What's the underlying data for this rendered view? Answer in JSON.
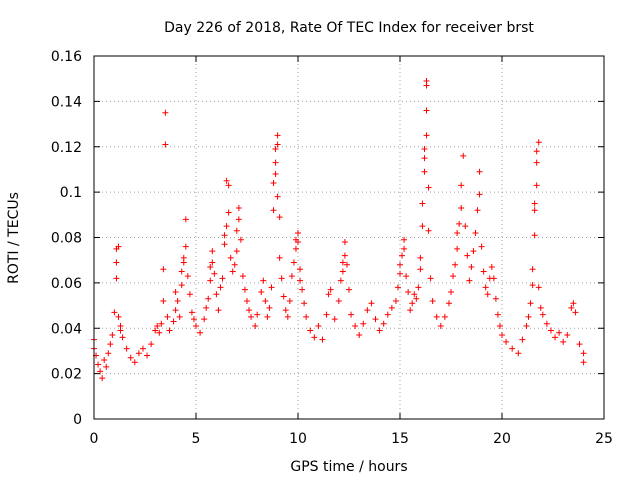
{
  "chart_data": {
    "type": "scatter",
    "title": "Day 226 of 2018, Rate Of TEC Index for receiver brst",
    "xlabel": "GPS time / hours",
    "ylabel": "ROTI / TECUs",
    "xlim": [
      0,
      25
    ],
    "ylim": [
      0,
      0.16
    ],
    "xticks": [
      "0",
      "5",
      "10",
      "15",
      "20",
      "25"
    ],
    "yticks": [
      "0",
      "0.02",
      "0.04",
      "0.06",
      "0.08",
      "0.1",
      "0.12",
      "0.14",
      "0.16"
    ],
    "grid": true,
    "marker": "plus",
    "color": "#ff0000",
    "series": [
      {
        "points": [
          [
            0.0,
            0.031
          ],
          [
            0.0,
            0.035
          ],
          [
            0.1,
            0.028
          ],
          [
            0.2,
            0.024
          ],
          [
            0.3,
            0.021
          ],
          [
            0.4,
            0.018
          ],
          [
            0.5,
            0.026
          ],
          [
            0.6,
            0.023
          ],
          [
            0.7,
            0.029
          ],
          [
            0.8,
            0.033
          ],
          [
            0.9,
            0.037
          ],
          [
            1.0,
            0.047
          ],
          [
            1.1,
            0.062
          ],
          [
            1.1,
            0.069
          ],
          [
            1.1,
            0.075
          ],
          [
            1.2,
            0.076
          ],
          [
            1.2,
            0.045
          ],
          [
            1.3,
            0.041
          ],
          [
            1.3,
            0.039
          ],
          [
            1.4,
            0.036
          ],
          [
            1.6,
            0.031
          ],
          [
            1.8,
            0.027
          ],
          [
            2.0,
            0.025
          ],
          [
            2.2,
            0.029
          ],
          [
            2.4,
            0.031
          ],
          [
            2.6,
            0.028
          ],
          [
            2.8,
            0.033
          ],
          [
            3.0,
            0.039
          ],
          [
            3.1,
            0.041
          ],
          [
            3.2,
            0.038
          ],
          [
            3.3,
            0.042
          ],
          [
            3.4,
            0.066
          ],
          [
            3.4,
            0.052
          ],
          [
            3.5,
            0.135
          ],
          [
            3.5,
            0.121
          ],
          [
            3.6,
            0.045
          ],
          [
            3.7,
            0.039
          ],
          [
            3.9,
            0.043
          ],
          [
            4.0,
            0.048
          ],
          [
            4.0,
            0.056
          ],
          [
            4.1,
            0.052
          ],
          [
            4.2,
            0.045
          ],
          [
            4.3,
            0.059
          ],
          [
            4.3,
            0.065
          ],
          [
            4.4,
            0.069
          ],
          [
            4.4,
            0.071
          ],
          [
            4.5,
            0.076
          ],
          [
            4.5,
            0.088
          ],
          [
            4.6,
            0.063
          ],
          [
            4.7,
            0.055
          ],
          [
            4.8,
            0.047
          ],
          [
            4.9,
            0.044
          ],
          [
            5.0,
            0.041
          ],
          [
            5.2,
            0.038
          ],
          [
            5.4,
            0.044
          ],
          [
            5.5,
            0.049
          ],
          [
            5.6,
            0.053
          ],
          [
            5.7,
            0.061
          ],
          [
            5.7,
            0.067
          ],
          [
            5.8,
            0.069
          ],
          [
            5.8,
            0.074
          ],
          [
            5.9,
            0.064
          ],
          [
            6.0,
            0.055
          ],
          [
            6.1,
            0.048
          ],
          [
            6.2,
            0.058
          ],
          [
            6.3,
            0.062
          ],
          [
            6.4,
            0.077
          ],
          [
            6.4,
            0.081
          ],
          [
            6.5,
            0.085
          ],
          [
            6.5,
            0.105
          ],
          [
            6.6,
            0.103
          ],
          [
            6.6,
            0.091
          ],
          [
            6.7,
            0.071
          ],
          [
            6.8,
            0.065
          ],
          [
            6.9,
            0.068
          ],
          [
            7.0,
            0.074
          ],
          [
            7.0,
            0.083
          ],
          [
            7.1,
            0.088
          ],
          [
            7.1,
            0.093
          ],
          [
            7.2,
            0.079
          ],
          [
            7.3,
            0.063
          ],
          [
            7.4,
            0.057
          ],
          [
            7.5,
            0.052
          ],
          [
            7.6,
            0.048
          ],
          [
            7.7,
            0.045
          ],
          [
            7.9,
            0.041
          ],
          [
            8.0,
            0.046
          ],
          [
            8.2,
            0.056
          ],
          [
            8.3,
            0.061
          ],
          [
            8.4,
            0.052
          ],
          [
            8.5,
            0.045
          ],
          [
            8.6,
            0.049
          ],
          [
            8.7,
            0.058
          ],
          [
            8.8,
            0.092
          ],
          [
            8.8,
            0.104
          ],
          [
            8.9,
            0.108
          ],
          [
            8.9,
            0.113
          ],
          [
            8.9,
            0.119
          ],
          [
            9.0,
            0.125
          ],
          [
            9.0,
            0.121
          ],
          [
            9.0,
            0.098
          ],
          [
            9.1,
            0.089
          ],
          [
            9.1,
            0.071
          ],
          [
            9.2,
            0.062
          ],
          [
            9.3,
            0.054
          ],
          [
            9.4,
            0.048
          ],
          [
            9.5,
            0.045
          ],
          [
            9.6,
            0.052
          ],
          [
            9.7,
            0.063
          ],
          [
            9.8,
            0.069
          ],
          [
            9.9,
            0.075
          ],
          [
            9.9,
            0.079
          ],
          [
            10.0,
            0.082
          ],
          [
            10.0,
            0.078
          ],
          [
            10.1,
            0.066
          ],
          [
            10.1,
            0.061
          ],
          [
            10.2,
            0.057
          ],
          [
            10.3,
            0.051
          ],
          [
            10.4,
            0.045
          ],
          [
            10.6,
            0.039
          ],
          [
            10.8,
            0.036
          ],
          [
            11.0,
            0.041
          ],
          [
            11.2,
            0.035
          ],
          [
            11.4,
            0.046
          ],
          [
            11.5,
            0.055
          ],
          [
            11.6,
            0.057
          ],
          [
            11.8,
            0.044
          ],
          [
            12.0,
            0.052
          ],
          [
            12.1,
            0.061
          ],
          [
            12.2,
            0.065
          ],
          [
            12.2,
            0.069
          ],
          [
            12.3,
            0.072
          ],
          [
            12.3,
            0.078
          ],
          [
            12.4,
            0.068
          ],
          [
            12.5,
            0.057
          ],
          [
            12.6,
            0.046
          ],
          [
            12.8,
            0.041
          ],
          [
            13.0,
            0.037
          ],
          [
            13.2,
            0.042
          ],
          [
            13.4,
            0.048
          ],
          [
            13.6,
            0.051
          ],
          [
            13.8,
            0.044
          ],
          [
            14.0,
            0.039
          ],
          [
            14.2,
            0.042
          ],
          [
            14.4,
            0.046
          ],
          [
            14.6,
            0.049
          ],
          [
            14.8,
            0.052
          ],
          [
            14.9,
            0.058
          ],
          [
            15.0,
            0.064
          ],
          [
            15.0,
            0.068
          ],
          [
            15.1,
            0.072
          ],
          [
            15.2,
            0.075
          ],
          [
            15.2,
            0.079
          ],
          [
            15.3,
            0.063
          ],
          [
            15.4,
            0.056
          ],
          [
            15.5,
            0.048
          ],
          [
            15.6,
            0.051
          ],
          [
            15.7,
            0.055
          ],
          [
            15.8,
            0.053
          ],
          [
            15.9,
            0.058
          ],
          [
            16.0,
            0.066
          ],
          [
            16.0,
            0.071
          ],
          [
            16.1,
            0.085
          ],
          [
            16.1,
            0.095
          ],
          [
            16.2,
            0.109
          ],
          [
            16.2,
            0.115
          ],
          [
            16.2,
            0.119
          ],
          [
            16.3,
            0.125
          ],
          [
            16.3,
            0.136
          ],
          [
            16.3,
            0.147
          ],
          [
            16.3,
            0.149
          ],
          [
            16.4,
            0.102
          ],
          [
            16.4,
            0.083
          ],
          [
            16.5,
            0.062
          ],
          [
            16.6,
            0.052
          ],
          [
            16.8,
            0.045
          ],
          [
            17.0,
            0.041
          ],
          [
            17.2,
            0.045
          ],
          [
            17.4,
            0.051
          ],
          [
            17.5,
            0.056
          ],
          [
            17.6,
            0.063
          ],
          [
            17.7,
            0.068
          ],
          [
            17.8,
            0.075
          ],
          [
            17.8,
            0.082
          ],
          [
            17.9,
            0.086
          ],
          [
            18.0,
            0.093
          ],
          [
            18.0,
            0.103
          ],
          [
            18.1,
            0.116
          ],
          [
            18.2,
            0.085
          ],
          [
            18.3,
            0.072
          ],
          [
            18.4,
            0.061
          ],
          [
            18.5,
            0.067
          ],
          [
            18.6,
            0.074
          ],
          [
            18.7,
            0.082
          ],
          [
            18.8,
            0.092
          ],
          [
            18.9,
            0.099
          ],
          [
            18.9,
            0.109
          ],
          [
            19.0,
            0.076
          ],
          [
            19.1,
            0.065
          ],
          [
            19.2,
            0.058
          ],
          [
            19.3,
            0.055
          ],
          [
            19.4,
            0.062
          ],
          [
            19.5,
            0.067
          ],
          [
            19.6,
            0.062
          ],
          [
            19.7,
            0.053
          ],
          [
            19.8,
            0.046
          ],
          [
            19.9,
            0.041
          ],
          [
            20.0,
            0.037
          ],
          [
            20.2,
            0.034
          ],
          [
            20.5,
            0.031
          ],
          [
            20.8,
            0.029
          ],
          [
            21.0,
            0.035
          ],
          [
            21.2,
            0.041
          ],
          [
            21.3,
            0.045
          ],
          [
            21.4,
            0.051
          ],
          [
            21.5,
            0.059
          ],
          [
            21.5,
            0.066
          ],
          [
            21.6,
            0.081
          ],
          [
            21.6,
            0.092
          ],
          [
            21.6,
            0.095
          ],
          [
            21.7,
            0.103
          ],
          [
            21.7,
            0.113
          ],
          [
            21.7,
            0.118
          ],
          [
            21.8,
            0.122
          ],
          [
            21.8,
            0.058
          ],
          [
            21.9,
            0.049
          ],
          [
            22.0,
            0.046
          ],
          [
            22.2,
            0.042
          ],
          [
            22.4,
            0.039
          ],
          [
            22.6,
            0.036
          ],
          [
            22.8,
            0.038
          ],
          [
            23.0,
            0.034
          ],
          [
            23.2,
            0.037
          ],
          [
            23.4,
            0.049
          ],
          [
            23.5,
            0.051
          ],
          [
            23.6,
            0.047
          ],
          [
            23.8,
            0.033
          ],
          [
            24.0,
            0.029
          ],
          [
            24.0,
            0.025
          ]
        ]
      }
    ]
  }
}
